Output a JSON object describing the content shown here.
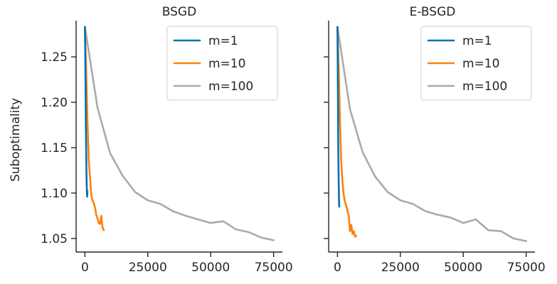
{
  "chart_data": [
    {
      "type": "line",
      "title": "BSGD",
      "xlabel": "",
      "ylabel": "Suboptimality",
      "xlim": [
        -3500,
        78500
      ],
      "ylim": [
        1.035,
        1.29
      ],
      "xticks": [
        "0",
        "25000",
        "50000",
        "75000"
      ],
      "xtick_values": [
        0,
        25000,
        50000,
        75000
      ],
      "yticks": [
        "1.05",
        "1.10",
        "1.15",
        "1.20",
        "1.25"
      ],
      "ytick_values": [
        1.05,
        1.1,
        1.15,
        1.2,
        1.25
      ],
      "legend_position": "top-right",
      "grid": false,
      "series": [
        {
          "name": "m=1",
          "color": "#0072b2",
          "x": [
            0,
            100,
            200,
            300,
            400,
            500,
            600,
            700,
            800,
            900,
            1000
          ],
          "y": [
            1.283,
            1.262,
            1.23,
            1.2,
            1.17,
            1.145,
            1.125,
            1.11,
            1.1,
            1.096,
            1.102
          ]
        },
        {
          "name": "m=10",
          "color": "#ff7f0e",
          "x": [
            0,
            500,
            1000,
            1500,
            2000,
            2500,
            3000,
            3500,
            4000,
            4500,
            5000,
            5500,
            6000,
            6500,
            7000,
            7500
          ],
          "y": [
            1.283,
            1.235,
            1.18,
            1.138,
            1.118,
            1.098,
            1.092,
            1.089,
            1.084,
            1.076,
            1.072,
            1.067,
            1.066,
            1.075,
            1.062,
            1.059
          ]
        },
        {
          "name": "m=100",
          "color": "#aaaaaa",
          "x": [
            0,
            5000,
            10000,
            15000,
            20000,
            25000,
            30000,
            35000,
            40000,
            45000,
            50000,
            55000,
            60000,
            65000,
            70000,
            75000
          ],
          "y": [
            1.283,
            1.194,
            1.144,
            1.119,
            1.101,
            1.092,
            1.088,
            1.08,
            1.075,
            1.071,
            1.067,
            1.069,
            1.06,
            1.057,
            1.051,
            1.048
          ]
        }
      ]
    },
    {
      "type": "line",
      "title": "E-BSGD",
      "xlabel": "",
      "ylabel": "",
      "xlim": [
        -3500,
        78500
      ],
      "ylim": [
        1.035,
        1.29
      ],
      "xticks": [
        "0",
        "25000",
        "50000",
        "75000"
      ],
      "xtick_values": [
        0,
        25000,
        50000,
        75000
      ],
      "yticks": [],
      "ytick_values": [
        1.05,
        1.1,
        1.15,
        1.2,
        1.25
      ],
      "legend_position": "top-right",
      "grid": false,
      "series": [
        {
          "name": "m=1",
          "color": "#0072b2",
          "x": [
            0,
            100,
            200,
            300,
            400,
            500,
            600,
            700
          ],
          "y": [
            1.283,
            1.245,
            1.2,
            1.16,
            1.13,
            1.11,
            1.095,
            1.085
          ]
        },
        {
          "name": "m=10",
          "color": "#ff7f0e",
          "x": [
            0,
            500,
            1000,
            1500,
            2000,
            2500,
            3000,
            3500,
            4000,
            4500,
            5000,
            5500,
            6000,
            6500,
            7000,
            7500
          ],
          "y": [
            1.283,
            1.24,
            1.18,
            1.135,
            1.112,
            1.098,
            1.09,
            1.086,
            1.08,
            1.075,
            1.058,
            1.065,
            1.055,
            1.058,
            1.052,
            1.053
          ]
        },
        {
          "name": "m=100",
          "color": "#aaaaaa",
          "x": [
            0,
            5000,
            10000,
            15000,
            20000,
            25000,
            30000,
            35000,
            40000,
            45000,
            50000,
            55000,
            60000,
            65000,
            70000,
            75000
          ],
          "y": [
            1.283,
            1.192,
            1.145,
            1.118,
            1.101,
            1.092,
            1.088,
            1.08,
            1.076,
            1.073,
            1.067,
            1.071,
            1.059,
            1.058,
            1.05,
            1.047
          ]
        }
      ]
    }
  ]
}
